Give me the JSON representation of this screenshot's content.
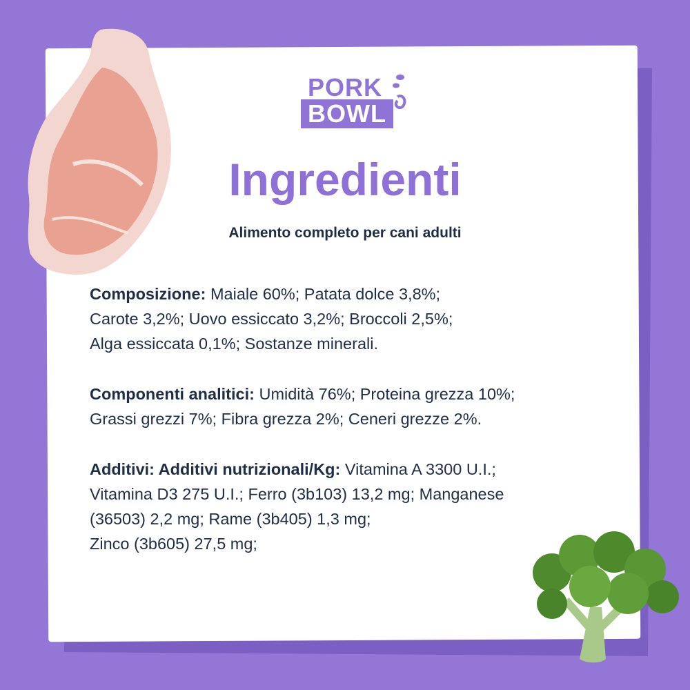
{
  "brand": {
    "logo_line1": "PORK",
    "logo_line2": "BOWL"
  },
  "title": "Ingredienti",
  "subtitle": "Alimento completo per cani adulti",
  "sections": [
    {
      "label": "Composizione:",
      "lines": [
        "Maiale 60%; Patata dolce 3,8%;",
        "Carote 3,2%; Uovo essiccato 3,2%; Broccoli 2,5%;",
        "Alga essiccata 0,1%; Sostanze minerali."
      ]
    },
    {
      "label": "Componenti analitici:",
      "lines": [
        "Umidità 76%; Proteina grezza 10%;",
        "Grassi grezzi 7%; Fibra grezza 2%; Ceneri grezze 2%."
      ]
    },
    {
      "label": "Additivi: Additivi nutrizionali/Kg:",
      "lines": [
        "Vitamina A 3300 U.I.;",
        "Vitamina D3 275 U.I.; Ferro (3b103) 13,2 mg; Manganese",
        "(36503) 2,2 mg; Rame (3b405) 1,3 mg;",
        "Zinco (3b605) 27,5 mg;"
      ]
    }
  ],
  "colors": {
    "background": "#9376d5",
    "accent": "#8e70d6",
    "text": "#1f2d45",
    "card": "#ffffff"
  }
}
